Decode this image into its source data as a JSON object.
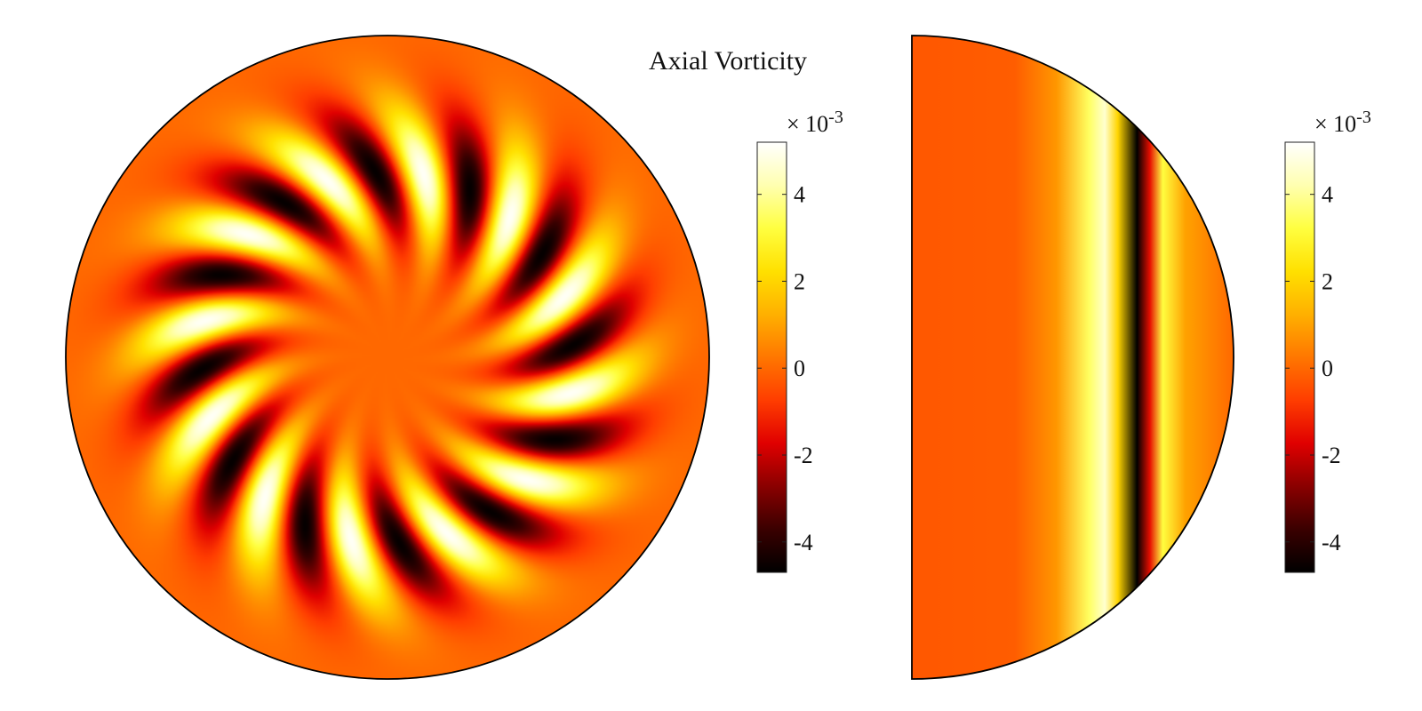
{
  "figure": {
    "title": "Axial Vorticity"
  },
  "colormap": {
    "name": "hot",
    "stops": [
      "#000000",
      "#3a0000",
      "#8a0000",
      "#e00000",
      "#ff3d00",
      "#ff7700",
      "#ffb000",
      "#ffe000",
      "#ffff40",
      "#ffffb0",
      "#ffffff"
    ]
  },
  "chart_data": [
    {
      "type": "heatmap",
      "title": "Axial Vorticity",
      "view": "cross-section (full disk)",
      "field": "axial vorticity",
      "pattern": "spiral",
      "spiral_arms": 12,
      "value_range": [
        -0.0047,
        0.0052
      ],
      "colorbar": {
        "multiplier_base": "× 10",
        "multiplier_exponent": "-3",
        "ticks": [
          -4,
          -2,
          0,
          2,
          4
        ],
        "tick_labels": [
          "-4",
          "-2",
          "0",
          "2",
          "4"
        ],
        "range": [
          -4.7,
          5.2
        ]
      }
    },
    {
      "type": "heatmap",
      "view": "half disk (side)",
      "field": "axial vorticity",
      "pattern": "vertical bands",
      "bands_x_fraction": [
        {
          "x": 0.0,
          "value": -0.0003
        },
        {
          "x": 0.32,
          "value": -0.0002
        },
        {
          "x": 0.45,
          "value": 0.0008
        },
        {
          "x": 0.55,
          "value": 0.0035
        },
        {
          "x": 0.6,
          "value": 0.0046
        },
        {
          "x": 0.64,
          "value": 0.002
        },
        {
          "x": 0.7,
          "value": -0.0047
        },
        {
          "x": 0.74,
          "value": -0.0015
        },
        {
          "x": 0.78,
          "value": 0.0032
        },
        {
          "x": 0.85,
          "value": 0.001
        },
        {
          "x": 1.0,
          "value": 0.0
        }
      ],
      "colorbar": {
        "multiplier_base": "× 10",
        "multiplier_exponent": "-3",
        "ticks": [
          -4,
          -2,
          0,
          2,
          4
        ],
        "tick_labels": [
          "-4",
          "-2",
          "0",
          "2",
          "4"
        ],
        "range": [
          -4.7,
          5.2
        ]
      }
    }
  ]
}
